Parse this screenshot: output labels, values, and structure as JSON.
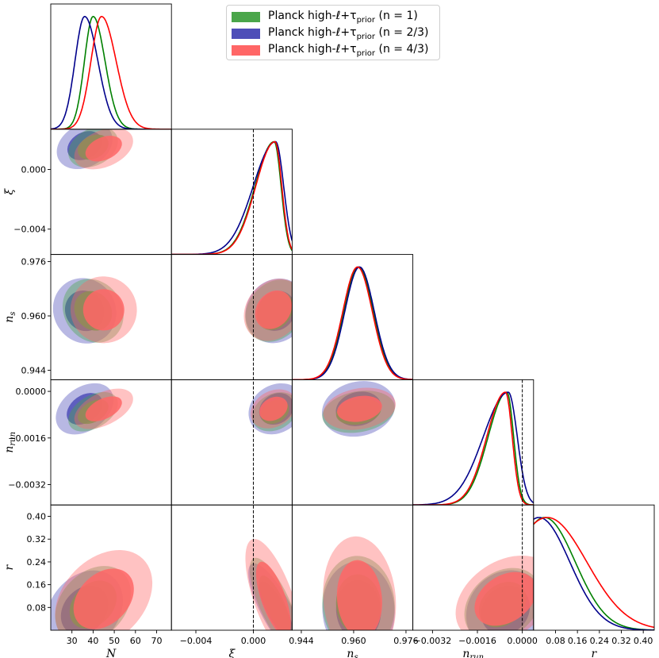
{
  "chart_data": {
    "type": "corner",
    "parameters": [
      {
        "key": "N",
        "label": "N",
        "range": [
          20,
          77
        ],
        "ticks": [
          30,
          40,
          50,
          60,
          70
        ],
        "tick_labels": [
          "30",
          "40",
          "50",
          "60",
          "70"
        ]
      },
      {
        "key": "xi",
        "label": "ξ",
        "range": [
          -0.0057,
          0.0027
        ],
        "ticks": [
          -0.004,
          0.0
        ],
        "tick_labels": [
          "−0.004",
          "0.000"
        ],
        "reference_line": 0.0
      },
      {
        "key": "ns",
        "label": "n",
        "label_sub": "s",
        "range": [
          0.9412,
          0.9781
        ],
        "ticks": [
          0.944,
          0.96,
          0.976
        ],
        "tick_labels": [
          "0.944",
          "0.960",
          "0.976"
        ]
      },
      {
        "key": "nrun",
        "label": "n",
        "label_sub": "run",
        "range": [
          -0.0039,
          0.0004
        ],
        "ticks": [
          -0.0032,
          -0.0016,
          0.0
        ],
        "tick_labels": [
          "−0.0032",
          "−0.0016",
          "0.0000"
        ],
        "reference_line": 0.0
      },
      {
        "key": "r",
        "label": "r",
        "range": [
          0.0,
          0.44
        ],
        "ticks": [
          0.08,
          0.16,
          0.24,
          0.32,
          0.4
        ],
        "tick_labels": [
          "0.08",
          "0.16",
          "0.24",
          "0.32",
          "0.40"
        ]
      }
    ],
    "series": [
      {
        "name": "n=1",
        "color": "#008000",
        "fill": "#4aa64a",
        "legend_main": "Planck high-ℓ+τ",
        "legend_sub": "prior",
        "legend_tail": " (n = 1)",
        "means": {
          "N": 40,
          "xi": 0.0015,
          "ns": 0.9615,
          "nrun": -0.0007,
          "r": 0.09
        },
        "sigmas": {
          "N": 4.5,
          "xi": 0.0006,
          "ns": 0.0045,
          "nrun": 0.0003,
          "r": 0.07
        },
        "peaks": {
          "N": 40,
          "xi": 0.00145,
          "ns": 0.9615,
          "nrun": -0.00055,
          "r": 0.04
        }
      },
      {
        "name": "n=2/3",
        "color": "#00008b",
        "fill": "#4e4eb8",
        "legend_main": "Planck high-ℓ+τ",
        "legend_sub": "prior",
        "legend_tail": " (n = 2/3)",
        "means": {
          "N": 36,
          "xi": 0.0016,
          "ns": 0.9615,
          "nrun": -0.0006,
          "r": 0.07
        },
        "sigmas": {
          "N": 5.0,
          "xi": 0.0007,
          "ns": 0.0045,
          "nrun": 0.0004,
          "r": 0.07
        },
        "peaks": {
          "N": 36,
          "xi": 0.00155,
          "ns": 0.9618,
          "nrun": -0.0005,
          "r": 0.02
        }
      },
      {
        "name": "n=4/3",
        "color": "#ff0000",
        "fill": "#ff6666",
        "legend_main": "Planck high-ℓ+τ",
        "legend_sub": "prior",
        "legend_tail": " (n = 4/3)",
        "means": {
          "N": 45,
          "xi": 0.0014,
          "ns": 0.9618,
          "nrun": -0.0006,
          "r": 0.11
        },
        "sigmas": {
          "N": 5.5,
          "xi": 0.0006,
          "ns": 0.0045,
          "nrun": 0.0003,
          "r": 0.09
        },
        "peaks": {
          "N": 44,
          "xi": 0.0015,
          "ns": 0.9612,
          "nrun": -0.0006,
          "r": 0.05
        }
      }
    ],
    "legend_position": "top-center"
  }
}
